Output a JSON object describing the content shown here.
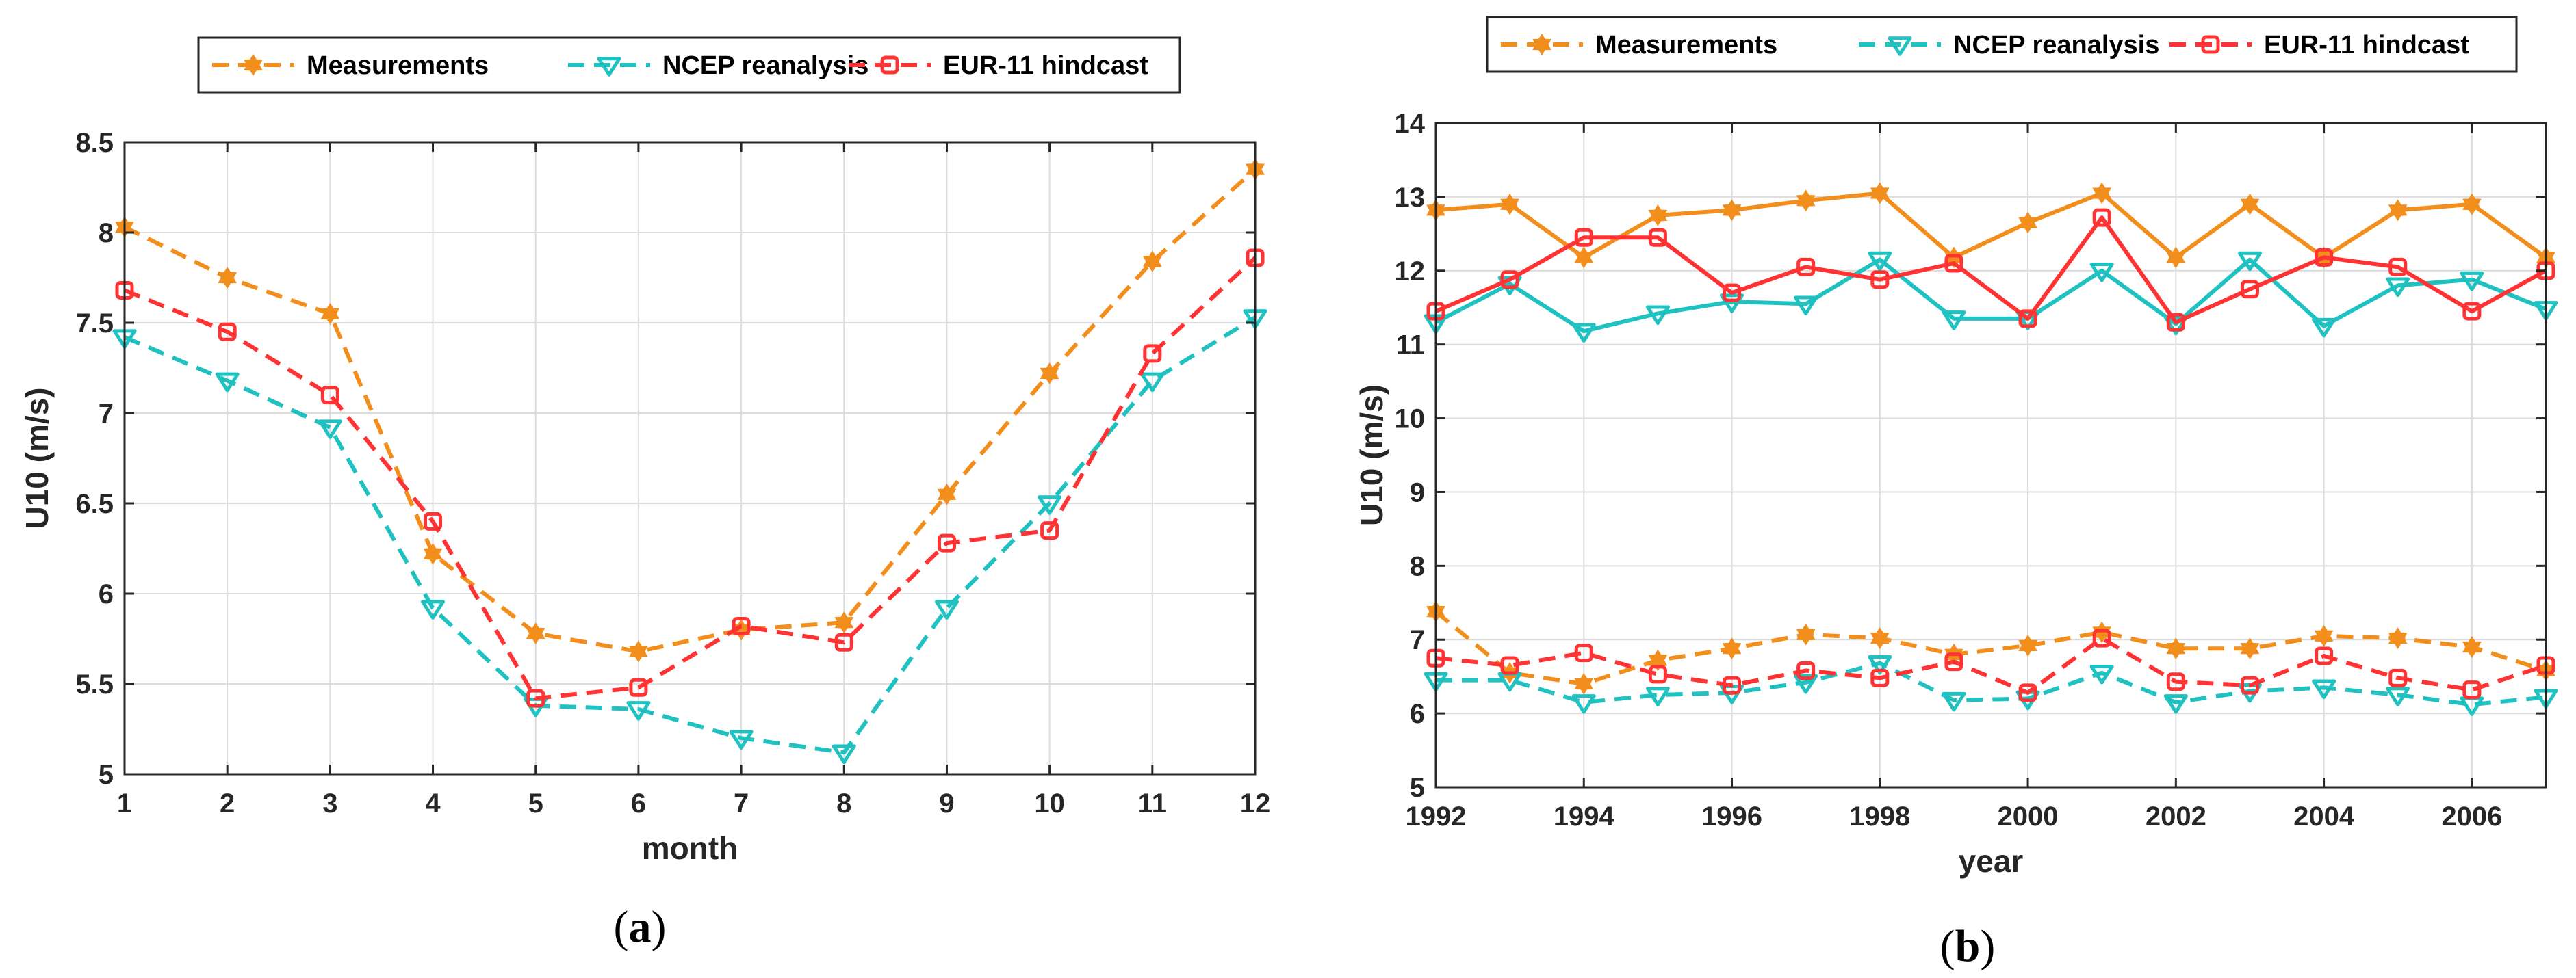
{
  "chart_data": [
    {
      "type": "line",
      "panel_label": "a",
      "xlabel": "month",
      "ylabel": "U10 (m/s)",
      "xlim": [
        1,
        12
      ],
      "ylim": [
        5,
        8.5
      ],
      "xticks": [
        1,
        2,
        3,
        4,
        5,
        6,
        7,
        8,
        9,
        10,
        11,
        12
      ],
      "yticks": [
        5,
        5.5,
        6,
        6.5,
        7,
        7.5,
        8,
        8.5
      ],
      "grid": true,
      "legend_position": "top",
      "x": [
        1,
        2,
        3,
        4,
        5,
        6,
        7,
        8,
        9,
        10,
        11,
        12
      ],
      "series": [
        {
          "name": "Measurements",
          "color": "#f28e1c",
          "line": "dashed",
          "marker": "star-filled",
          "values": [
            8.03,
            7.75,
            7.55,
            6.22,
            5.78,
            5.68,
            5.8,
            5.84,
            6.55,
            7.22,
            7.84,
            8.35
          ]
        },
        {
          "name": "NCEP reanalysis",
          "color": "#1fc1c1",
          "line": "dashed",
          "marker": "triangle-down-open",
          "values": [
            7.42,
            7.18,
            6.92,
            5.92,
            5.38,
            5.36,
            5.2,
            5.12,
            5.92,
            6.5,
            7.18,
            7.53
          ]
        },
        {
          "name": "EUR-11 hindcast",
          "color": "#ff3333",
          "line": "dashed",
          "marker": "square-open",
          "values": [
            7.68,
            7.45,
            7.1,
            6.4,
            5.42,
            5.48,
            5.82,
            5.73,
            6.28,
            6.35,
            7.33,
            7.86
          ]
        }
      ]
    },
    {
      "type": "line",
      "panel_label": "b",
      "xlabel": "year",
      "ylabel": "U10 (m/s)",
      "xlim": [
        1992,
        2007
      ],
      "ylim": [
        5,
        14
      ],
      "xticks": [
        1992,
        1994,
        1996,
        1998,
        2000,
        2002,
        2004,
        2006
      ],
      "yticks": [
        5,
        6,
        7,
        8,
        9,
        10,
        11,
        12,
        13,
        14
      ],
      "grid": true,
      "legend_position": "top",
      "x": [
        1992,
        1993,
        1994,
        1995,
        1996,
        1997,
        1998,
        1999,
        2000,
        2001,
        2002,
        2003,
        2004,
        2005,
        2006,
        2007
      ],
      "series": [
        {
          "name": "Measurements",
          "color": "#f28e1c",
          "line": "dashed",
          "marker": "star-filled",
          "values": [
            7.38,
            6.55,
            6.4,
            6.72,
            6.88,
            7.07,
            7.02,
            6.8,
            6.92,
            7.1,
            6.88,
            6.88,
            7.05,
            7.02,
            6.9,
            6.58
          ]
        },
        {
          "name": "NCEP reanalysis",
          "color": "#1fc1c1",
          "line": "dashed",
          "marker": "triangle-down-open",
          "values": [
            6.45,
            6.45,
            6.15,
            6.25,
            6.28,
            6.42,
            6.68,
            6.18,
            6.2,
            6.55,
            6.15,
            6.3,
            6.35,
            6.25,
            6.12,
            6.22
          ]
        },
        {
          "name": "EUR-11 hindcast",
          "color": "#ff3333",
          "line": "dashed",
          "marker": "square-open",
          "values": [
            6.75,
            6.65,
            6.82,
            6.53,
            6.38,
            6.58,
            6.48,
            6.7,
            6.28,
            7.02,
            6.43,
            6.38,
            6.78,
            6.48,
            6.32,
            6.65
          ]
        },
        {
          "name": "",
          "color": "#f28e1c",
          "line": "solid",
          "marker": "star-filled",
          "values": [
            12.82,
            12.9,
            12.18,
            12.75,
            12.82,
            12.95,
            13.05,
            12.18,
            12.65,
            13.05,
            12.18,
            12.9,
            12.18,
            12.82,
            12.9,
            12.18
          ]
        },
        {
          "name": "",
          "color": "#1fc1c1",
          "line": "solid",
          "marker": "triangle-down-open",
          "values": [
            11.3,
            11.82,
            11.18,
            11.42,
            11.58,
            11.55,
            12.15,
            11.35,
            11.35,
            12.0,
            11.28,
            12.15,
            11.25,
            11.8,
            11.88,
            11.48
          ]
        },
        {
          "name": "",
          "color": "#ff3333",
          "line": "solid",
          "marker": "square-open",
          "values": [
            11.45,
            11.88,
            12.45,
            12.45,
            11.7,
            12.05,
            11.88,
            12.1,
            11.35,
            12.72,
            11.3,
            11.75,
            12.18,
            12.05,
            11.45,
            12.0
          ]
        }
      ]
    }
  ]
}
